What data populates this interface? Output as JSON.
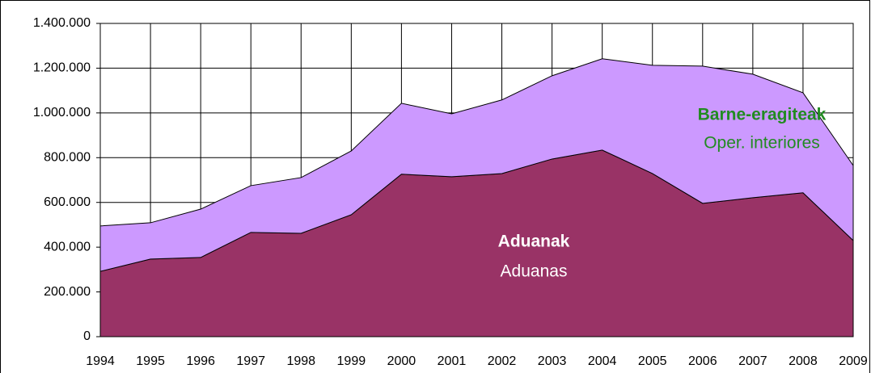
{
  "chart_data": {
    "type": "stacked_area",
    "x": [
      1994,
      1995,
      1996,
      1997,
      1998,
      1999,
      2000,
      2001,
      2002,
      2003,
      2004,
      2005,
      2006,
      2007,
      2008,
      2009
    ],
    "series": [
      {
        "name": "Aduanak",
        "color": "#993366",
        "values": [
          292000,
          347000,
          354000,
          466000,
          462000,
          545000,
          726000,
          715000,
          729000,
          794000,
          834000,
          729000,
          596000,
          621000,
          643000,
          430000
        ]
      },
      {
        "name": "Barne-eragiteak",
        "color": "#cc99ff",
        "values": [
          203000,
          162000,
          216000,
          209000,
          249000,
          285000,
          317000,
          281000,
          329000,
          372000,
          408000,
          484000,
          613000,
          552000,
          447000,
          335000
        ]
      }
    ],
    "annotations": [
      "Aduanas",
      "Oper. interiores"
    ],
    "xlim": [
      1994,
      2009
    ],
    "ylim": [
      0,
      1400000
    ],
    "yticks": [
      0,
      {
        "value": 200000,
        "label": "200.000"
      },
      {
        "value": 400000,
        "label": "400.000"
      },
      {
        "value": 600000,
        "label": "600.000"
      },
      {
        "value": 800000,
        "label": "800.000"
      },
      {
        "value": 1000000,
        "label": "1.000.000"
      },
      {
        "value": 1200000,
        "label": "1.200.000"
      },
      {
        "value": 1400000,
        "label": "1.400.000"
      }
    ],
    "grid": true
  }
}
